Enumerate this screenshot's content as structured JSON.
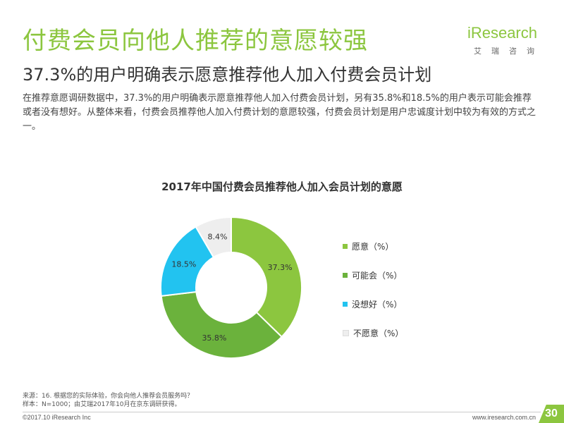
{
  "header": {
    "title": "付费会员向他人推荐的意愿较强",
    "subtitle": "37.3%的用户明确表示愿意推荐他人加入付费会员计划",
    "description": "在推荐意愿调研数据中，37.3%的用户明确表示愿意推荐他人加入付费会员计划，另有35.8%和18.5%的用户表示可能会推荐或者没有想好。从整体来看，付费会员推荐他人加入付费计划的意愿较强，付费会员计划是用户忠诚度计划中较为有效的方式之一。"
  },
  "logo": {
    "word": "iResearch",
    "cn": "艾瑞咨询"
  },
  "chart_data": {
    "type": "pie",
    "title": "2017年中国付费会员推荐他人加入会员计划的意愿",
    "categories": [
      "愿意（%）",
      "可能会（%）",
      "没想好（%）",
      "不愿意（%）"
    ],
    "values": [
      37.3,
      35.8,
      18.5,
      8.4
    ],
    "value_labels": [
      "37.3%",
      "35.8%",
      "18.5%",
      "8.4%"
    ],
    "colors": [
      "#8cc63f",
      "#6bb23c",
      "#22c3f0",
      "#eeeeee"
    ],
    "donut": true,
    "legend_position": "right"
  },
  "footer": {
    "source": "来源：16. 根据您的实际体验，你会向他人推荐会员服务吗？",
    "sample": "样本：N=1000；由艾瑞2017年10月在京东调研获得。",
    "copyright": "©2017.10 iResearch Inc",
    "website": "www.iresearch.com.cn",
    "page": "30"
  }
}
